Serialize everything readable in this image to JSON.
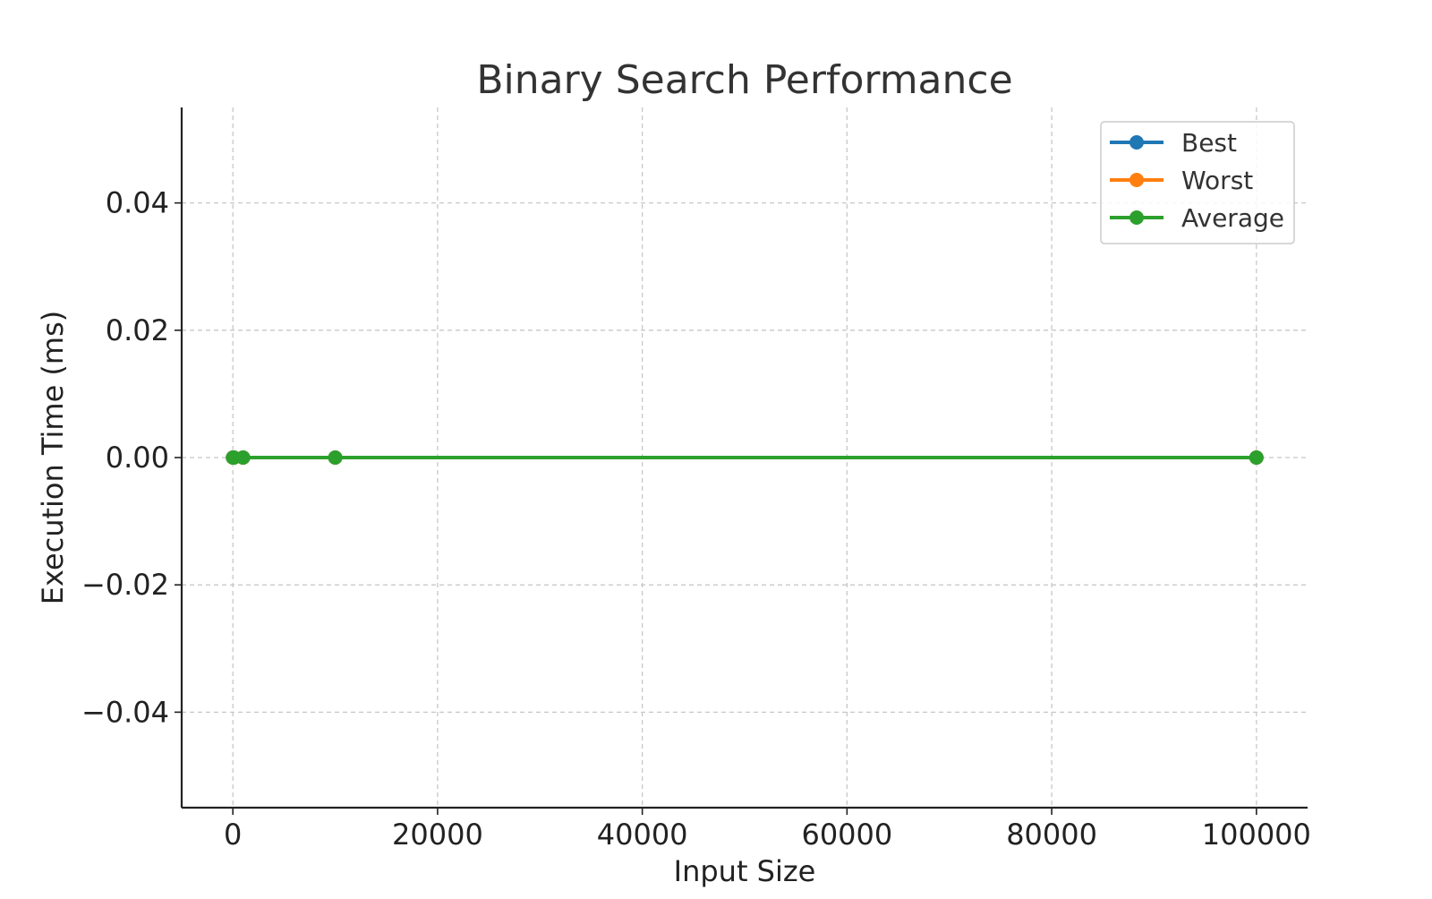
{
  "chart_data": {
    "type": "line",
    "title": "Binary Search Performance",
    "xlabel": "Input Size",
    "ylabel": "Execution Time (ms)",
    "xlim": [
      -5000,
      105000
    ],
    "ylim": [
      -0.055,
      0.055
    ],
    "xticks": [
      0,
      20000,
      40000,
      60000,
      80000,
      100000
    ],
    "xtick_labels": [
      "0",
      "20000",
      "40000",
      "60000",
      "80000",
      "100000"
    ],
    "yticks": [
      -0.04,
      -0.02,
      0.0,
      0.02,
      0.04
    ],
    "ytick_labels": [
      "−0.04",
      "−0.02",
      "0.00",
      "0.02",
      "0.04"
    ],
    "grid": true,
    "legend_position": "top-right",
    "x": [
      10,
      100,
      1000,
      10000,
      100000
    ],
    "series": [
      {
        "name": "Best",
        "color": "#1f77b4",
        "values": [
          0,
          0,
          0,
          0,
          0
        ]
      },
      {
        "name": "Worst",
        "color": "#ff7f0e",
        "values": [
          0,
          0,
          0,
          0,
          0
        ]
      },
      {
        "name": "Average",
        "color": "#2ca02c",
        "values": [
          0,
          0,
          0,
          0,
          0
        ]
      }
    ]
  }
}
